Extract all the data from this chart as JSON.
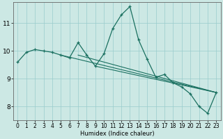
{
  "xlabel": "Humidex (Indice chaleur)",
  "background_color": "#cce8e4",
  "grid_color": "#99cccc",
  "line_color": "#1a7060",
  "xlim": [
    -0.5,
    23.5
  ],
  "ylim": [
    7.5,
    11.75
  ],
  "yticks": [
    8,
    9,
    10,
    11
  ],
  "xticks": [
    0,
    1,
    2,
    3,
    4,
    5,
    6,
    7,
    8,
    9,
    10,
    11,
    12,
    13,
    14,
    15,
    16,
    17,
    18,
    19,
    20,
    21,
    22,
    23
  ],
  "main_x": [
    0,
    1,
    2,
    3,
    4,
    5,
    6,
    7,
    8,
    9,
    10,
    11,
    12,
    13,
    14,
    15,
    16,
    17,
    18,
    19,
    20,
    21,
    22,
    23
  ],
  "main_y": [
    9.6,
    9.95,
    10.05,
    10.0,
    9.95,
    9.85,
    9.75,
    10.3,
    9.85,
    9.45,
    9.9,
    10.8,
    11.3,
    11.6,
    10.4,
    9.7,
    9.05,
    9.15,
    8.85,
    8.7,
    8.45,
    8.0,
    7.75,
    8.5
  ],
  "trend_lines": [
    {
      "x": [
        5,
        23
      ],
      "y": [
        9.85,
        8.5
      ]
    },
    {
      "x": [
        7,
        23
      ],
      "y": [
        9.85,
        8.5
      ]
    },
    {
      "x": [
        9,
        23
      ],
      "y": [
        9.45,
        8.5
      ]
    }
  ]
}
